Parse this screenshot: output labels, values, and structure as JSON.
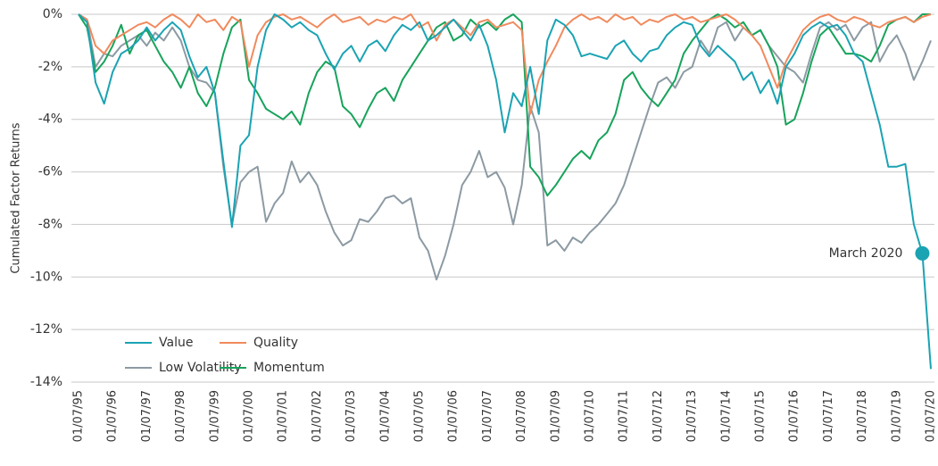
{
  "chart_data": {
    "type": "line",
    "y_label": "Cumulated Factor Returns",
    "annotation": "March 2020",
    "legend": "lower left",
    "grid": true,
    "ylim": [
      -14,
      0
    ],
    "yticks": [
      {
        "value": 0,
        "label": "0%"
      },
      {
        "value": -2,
        "label": "-2%"
      },
      {
        "value": -4,
        "label": "-4%"
      },
      {
        "value": -6,
        "label": "-6%"
      },
      {
        "value": -8,
        "label": "-8%"
      },
      {
        "value": -10,
        "label": "-10%"
      },
      {
        "value": -12,
        "label": "-12%"
      },
      {
        "value": -14,
        "label": "-14%"
      }
    ],
    "categories": [
      "01/07/95",
      null,
      null,
      null,
      "01/07/96",
      null,
      null,
      null,
      "01/07/97",
      null,
      null,
      null,
      "01/07/98",
      null,
      null,
      null,
      "01/07/99",
      null,
      null,
      null,
      "01/07/00",
      null,
      null,
      null,
      "01/07/01",
      null,
      null,
      null,
      "01/07/02",
      null,
      null,
      null,
      "01/07/03",
      null,
      null,
      null,
      "01/07/04",
      null,
      null,
      null,
      "01/07/05",
      null,
      null,
      null,
      "01/07/06",
      null,
      null,
      null,
      "01/07/07",
      null,
      null,
      null,
      "01/07/08",
      null,
      null,
      null,
      "01/07/09",
      null,
      null,
      null,
      "01/07/10",
      null,
      null,
      null,
      "01/07/11",
      null,
      null,
      null,
      "01/07/12",
      null,
      null,
      null,
      "01/07/13",
      null,
      null,
      null,
      "01/07/14",
      null,
      null,
      null,
      "01/07/15",
      null,
      null,
      null,
      "01/07/16",
      null,
      null,
      null,
      "01/07/17",
      null,
      null,
      null,
      "01/07/18",
      null,
      null,
      null,
      "01/07/19",
      null,
      null,
      null,
      "01/07/20"
    ],
    "series": [
      {
        "name": "Value",
        "color": "#1aa3b3",
        "values": [
          0,
          -0.3,
          -2.6,
          -3.4,
          -2.2,
          -1.5,
          -1.3,
          -1.0,
          -0.5,
          -1.0,
          -0.6,
          -0.3,
          -0.6,
          -1.6,
          -2.4,
          -2.0,
          -3.0,
          -5.6,
          -8.1,
          -5.0,
          -4.6,
          -2.0,
          -0.6,
          0,
          -0.2,
          -0.5,
          -0.3,
          -0.6,
          -0.8,
          -1.5,
          -2.1,
          -1.5,
          -1.2,
          -1.8,
          -1.2,
          -1.0,
          -1.4,
          -0.8,
          -0.4,
          -0.6,
          -0.3,
          -1.0,
          -0.8,
          -0.5,
          -0.2,
          -0.6,
          -1.0,
          -0.4,
          -1.2,
          -2.5,
          -4.5,
          -3.0,
          -3.5,
          -2.0,
          -3.8,
          -1.0,
          -0.2,
          -0.4,
          -0.8,
          -1.6,
          -1.5,
          -1.6,
          -1.7,
          -1.2,
          -1.0,
          -1.5,
          -1.8,
          -1.4,
          -1.3,
          -0.8,
          -0.5,
          -0.3,
          -0.4,
          -1.2,
          -1.6,
          -1.2,
          -1.5,
          -1.8,
          -2.5,
          -2.2,
          -3.0,
          -2.5,
          -3.4,
          -2.0,
          -1.5,
          -0.8,
          -0.5,
          -0.3,
          -0.5,
          -0.4,
          -0.8,
          -1.5,
          -1.8,
          -3.0,
          -4.2,
          -5.8,
          -5.8,
          -5.7,
          -8.0,
          -9.1,
          -13.5
        ]
      },
      {
        "name": "Quality",
        "color": "#f08a5d",
        "values": [
          0,
          -0.2,
          -1.2,
          -1.5,
          -1.0,
          -0.8,
          -0.6,
          -0.4,
          -0.3,
          -0.5,
          -0.2,
          0,
          -0.2,
          -0.5,
          0,
          -0.3,
          -0.2,
          -0.6,
          -0.1,
          -0.3,
          -2.0,
          -0.8,
          -0.3,
          -0.1,
          0,
          -0.2,
          -0.1,
          -0.3,
          -0.5,
          -0.2,
          0,
          -0.3,
          -0.2,
          -0.1,
          -0.4,
          -0.2,
          -0.3,
          -0.1,
          -0.2,
          0,
          -0.5,
          -0.3,
          -1.0,
          -0.4,
          -0.2,
          -0.5,
          -0.8,
          -0.3,
          -0.2,
          -0.5,
          -0.4,
          -0.3,
          -0.6,
          -3.8,
          -2.5,
          -1.8,
          -1.2,
          -0.5,
          -0.2,
          0,
          -0.2,
          -0.1,
          -0.3,
          0,
          -0.2,
          -0.1,
          -0.4,
          -0.2,
          -0.3,
          -0.1,
          0,
          -0.2,
          -0.1,
          -0.3,
          -0.2,
          -0.1,
          0,
          -0.2,
          -0.5,
          -0.8,
          -1.2,
          -2.0,
          -2.8,
          -1.8,
          -1.2,
          -0.6,
          -0.3,
          -0.1,
          0,
          -0.2,
          -0.3,
          -0.1,
          -0.2,
          -0.4,
          -0.5,
          -0.3,
          -0.2,
          -0.1,
          -0.3,
          -0.1,
          0
        ]
      },
      {
        "name": "Low Volatility",
        "color": "#8c9aa3",
        "values": [
          0,
          -0.2,
          -2.0,
          -1.5,
          -1.6,
          -1.2,
          -1.0,
          -0.8,
          -1.2,
          -0.7,
          -1.0,
          -0.5,
          -1.0,
          -2.0,
          -2.5,
          -2.6,
          -3.0,
          -5.8,
          -8.0,
          -6.4,
          -6.0,
          -5.8,
          -7.9,
          -7.2,
          -6.8,
          -5.6,
          -6.4,
          -6.0,
          -6.5,
          -7.5,
          -8.3,
          -8.8,
          -8.6,
          -7.8,
          -7.9,
          -7.5,
          -7.0,
          -6.9,
          -7.2,
          -7.0,
          -8.5,
          -9.0,
          -10.1,
          -9.2,
          -8.0,
          -6.5,
          -6.0,
          -5.2,
          -6.2,
          -6.0,
          -6.6,
          -8.0,
          -6.5,
          -3.5,
          -4.5,
          -8.8,
          -8.6,
          -9.0,
          -8.5,
          -8.7,
          -8.3,
          -8.0,
          -7.6,
          -7.2,
          -6.5,
          -5.5,
          -4.5,
          -3.5,
          -2.6,
          -2.4,
          -2.8,
          -2.2,
          -2.0,
          -1.0,
          -1.5,
          -0.5,
          -0.3,
          -1.0,
          -0.5,
          -0.8,
          -0.6,
          -1.2,
          -1.6,
          -2.0,
          -2.2,
          -2.6,
          -1.5,
          -0.5,
          -0.3,
          -0.6,
          -0.4,
          -1.0,
          -0.5,
          -0.3,
          -1.8,
          -1.2,
          -0.8,
          -1.5,
          -2.5,
          -1.8,
          -1.0
        ]
      },
      {
        "name": "Momentum",
        "color": "#17a35b",
        "values": [
          0,
          -0.5,
          -2.2,
          -1.8,
          -1.2,
          -0.4,
          -1.5,
          -0.8,
          -0.6,
          -1.2,
          -1.8,
          -2.2,
          -2.8,
          -2.0,
          -3.0,
          -3.5,
          -2.8,
          -1.5,
          -0.5,
          -0.2,
          -2.5,
          -3.0,
          -3.6,
          -3.8,
          -4.0,
          -3.7,
          -4.2,
          -3.0,
          -2.2,
          -1.8,
          -2.0,
          -3.5,
          -3.8,
          -4.3,
          -3.6,
          -3.0,
          -2.8,
          -3.3,
          -2.5,
          -2.0,
          -1.5,
          -1.0,
          -0.5,
          -0.3,
          -1.0,
          -0.8,
          -0.2,
          -0.5,
          -0.3,
          -0.6,
          -0.2,
          0,
          -0.3,
          -5.8,
          -6.2,
          -6.9,
          -6.5,
          -6.0,
          -5.5,
          -5.2,
          -5.5,
          -4.8,
          -4.5,
          -3.8,
          -2.5,
          -2.2,
          -2.8,
          -3.2,
          -3.5,
          -3.0,
          -2.5,
          -1.5,
          -1.0,
          -0.6,
          -0.2,
          0,
          -0.2,
          -0.5,
          -0.3,
          -0.8,
          -0.6,
          -1.2,
          -2.0,
          -4.2,
          -4.0,
          -3.0,
          -1.8,
          -0.8,
          -0.5,
          -1.0,
          -1.5,
          -1.5,
          -1.6,
          -1.8,
          -1.2,
          -0.4,
          -0.2,
          -0.1,
          -0.3,
          0,
          0
        ]
      }
    ]
  }
}
